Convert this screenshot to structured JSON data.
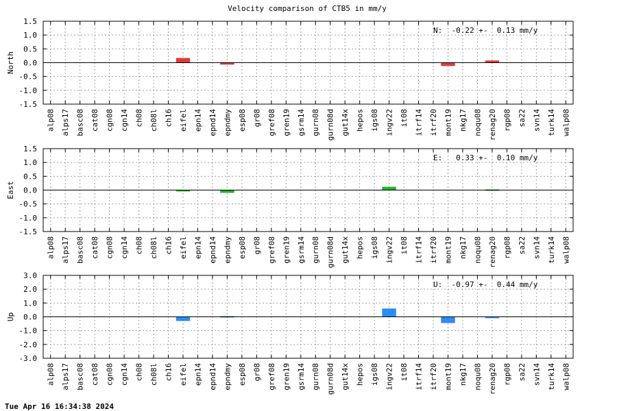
{
  "title": "Velocity comparison of CTB5 in mm/y",
  "timestamp": "Tue Apr 16 16:34:38 2024",
  "chart_data": [
    {
      "type": "bar",
      "ylabel": "North",
      "ylim": [
        -1.5,
        1.5
      ],
      "yticks": [
        "1.5",
        "1.0",
        "0.5",
        "0.0",
        "-0.5",
        "-1.0",
        "-1.5"
      ],
      "ytick_values": [
        1.5,
        1.0,
        0.5,
        0.0,
        -0.5,
        -1.0,
        -1.5
      ],
      "grid": true,
      "color": "#e03a3a",
      "annotation": "N:  -0.22 +-  0.13 mm/y",
      "categories": [
        "alp08",
        "alps17",
        "basc08",
        "cat08",
        "cgn08",
        "cgn14",
        "ch08",
        "ch08l",
        "ch16",
        "eifel",
        "epn14",
        "epnd14",
        "epndmy",
        "esp08",
        "gr08",
        "gref08",
        "gren19",
        "gsrm14",
        "gurn08",
        "gurn08d",
        "gut14x",
        "hepos",
        "igs08",
        "ingv22",
        "it08",
        "itrf14",
        "itrf20",
        "mont19",
        "nkg17",
        "noqu08",
        "renag20",
        "rgp08",
        "sa22",
        "svn14",
        "turk14",
        "walp08"
      ],
      "values": [
        0,
        0,
        0,
        0,
        0,
        0,
        0,
        0,
        0,
        0.17,
        0,
        0,
        -0.07,
        0,
        0,
        0,
        0,
        0,
        0,
        0,
        0,
        0,
        0,
        0,
        0,
        0,
        0,
        -0.12,
        0,
        0,
        0.08,
        0,
        0,
        0,
        0,
        0
      ]
    },
    {
      "type": "bar",
      "ylabel": "East",
      "ylim": [
        -1.5,
        1.5
      ],
      "yticks": [
        "1.5",
        "1.0",
        "0.5",
        "0.0",
        "-0.5",
        "-1.0",
        "-1.5"
      ],
      "ytick_values": [
        1.5,
        1.0,
        0.5,
        0.0,
        -0.5,
        -1.0,
        -1.5
      ],
      "grid": true,
      "color": "#22b422",
      "annotation": "E:   0.33 +-  0.10 mm/y",
      "categories": [
        "alp08",
        "alps17",
        "basc08",
        "cat08",
        "cgn08",
        "cgn14",
        "ch08",
        "ch08l",
        "ch16",
        "eifel",
        "epn14",
        "epnd14",
        "epndmy",
        "esp08",
        "gr08",
        "gref08",
        "gren19",
        "gsrm14",
        "gurn08",
        "gurn08d",
        "gut14x",
        "hepos",
        "igs08",
        "ingv22",
        "it08",
        "itrf14",
        "itrf20",
        "mont19",
        "nkg17",
        "noqu08",
        "renag20",
        "rgp08",
        "sa22",
        "svn14",
        "turk14",
        "walp08"
      ],
      "values": [
        0,
        0,
        0,
        0,
        0,
        0,
        0,
        0,
        0,
        -0.05,
        0,
        0,
        -0.1,
        0,
        0,
        0,
        0,
        0,
        0,
        0,
        0,
        0,
        0,
        0.12,
        0,
        0,
        0,
        0,
        0,
        0,
        0.04,
        0,
        0,
        0,
        0,
        0
      ]
    },
    {
      "type": "bar",
      "ylabel": "Up",
      "ylim": [
        -3.0,
        3.0
      ],
      "yticks": [
        "3.0",
        "2.0",
        "1.0",
        "0.0",
        "-1.0",
        "-2.0",
        "-3.0"
      ],
      "ytick_values": [
        3.0,
        2.0,
        1.0,
        0.0,
        -1.0,
        -2.0,
        -3.0
      ],
      "grid": true,
      "color": "#2a8cf4",
      "annotation": "U:  -0.97 +-  0.44 mm/y",
      "categories": [
        "alp08",
        "alps17",
        "basc08",
        "cat08",
        "cgn08",
        "cgn14",
        "ch08",
        "ch08l",
        "ch16",
        "eifel",
        "epn14",
        "epnd14",
        "epndmy",
        "esp08",
        "gr08",
        "gref08",
        "gren19",
        "gsrm14",
        "gurn08",
        "gurn08d",
        "gut14x",
        "hepos",
        "igs08",
        "ingv22",
        "it08",
        "itrf14",
        "itrf20",
        "mont19",
        "nkg17",
        "noqu08",
        "renag20",
        "rgp08",
        "sa22",
        "svn14",
        "turk14",
        "walp08"
      ],
      "values": [
        0,
        0,
        0,
        0,
        0,
        0,
        0,
        0,
        0,
        -0.3,
        0,
        0,
        0.05,
        0,
        0,
        0,
        0,
        0,
        0,
        0,
        0,
        0,
        0,
        0.6,
        0,
        0,
        0,
        -0.45,
        0,
        0,
        -0.1,
        0,
        0,
        0,
        0,
        0
      ]
    }
  ]
}
